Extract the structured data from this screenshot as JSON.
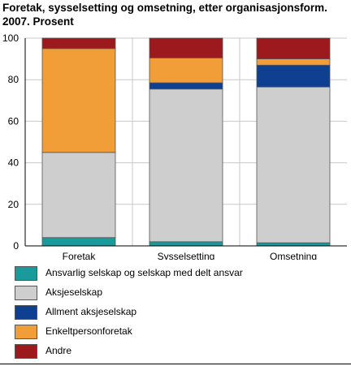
{
  "chart_data": {
    "type": "bar",
    "stacked": true,
    "title": "Foretak, sysselsetting og omsetning, etter organisasjonsform. 2007. Prosent",
    "categories": [
      "Foretak",
      "Sysselsetting",
      "Omsetning"
    ],
    "ylim": [
      0,
      100
    ],
    "yticks": [
      0,
      20,
      40,
      60,
      80,
      100
    ],
    "grid": true,
    "legend_position": "bottom",
    "series": [
      {
        "name": "Ansvarlig selskap og selskap med delt ansvar",
        "color": "#1a9b9b",
        "values": [
          4,
          2,
          1.5
        ]
      },
      {
        "name": "Aksjeselskap",
        "color": "#cecece",
        "values": [
          41,
          73.5,
          75
        ]
      },
      {
        "name": "Allment aksjeselskap",
        "color": "#0f3f91",
        "values": [
          0,
          3,
          10.5
        ]
      },
      {
        "name": "Enkeltpersonforetak",
        "color": "#f19d38",
        "values": [
          50,
          12,
          3
        ]
      },
      {
        "name": "Andre",
        "color": "#9c1a1e",
        "values": [
          5,
          9.5,
          10
        ]
      }
    ]
  }
}
